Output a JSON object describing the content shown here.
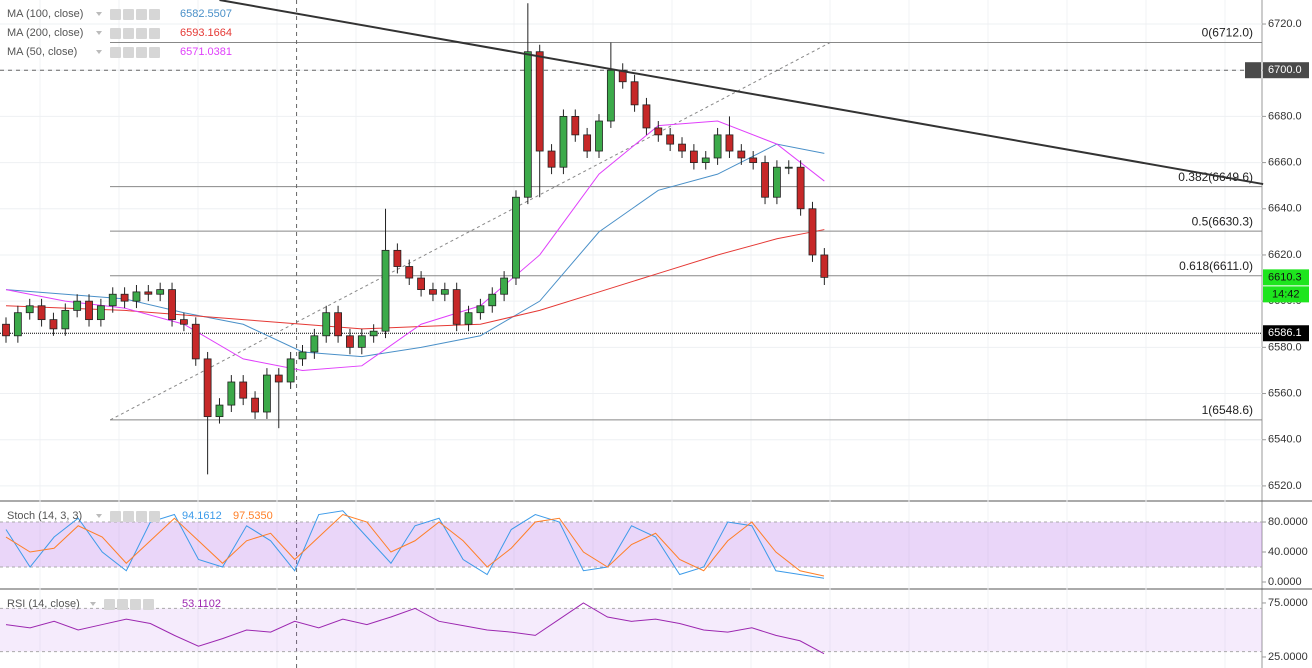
{
  "chart_data": [
    {
      "type": "candlestick",
      "up_color": "#3caa4a",
      "down_color": "#c62828",
      "open": [
        6590,
        6585,
        6595,
        6598,
        6592,
        6588,
        6596,
        6600,
        6592,
        6598,
        6603,
        6600,
        6604,
        6603,
        6605,
        6592,
        6590,
        6575,
        6550,
        6555,
        6565,
        6558,
        6552,
        6568,
        6565,
        6575,
        6578,
        6585,
        6595,
        6585,
        6580,
        6585,
        6587,
        6622,
        6615,
        6610,
        6605,
        6603,
        6605,
        6590,
        6595,
        6598,
        6603,
        6610,
        6645,
        6708,
        6665,
        6658,
        6680,
        6672,
        6665,
        6678,
        6700,
        6695,
        6685,
        6675,
        6672,
        6668,
        6665,
        6660,
        6662,
        6672,
        6665,
        6662,
        6660,
        6645,
        6658,
        6658,
        6640,
        6620
      ],
      "high": [
        6593,
        6598,
        6601,
        6601,
        6595,
        6599,
        6603,
        6603,
        6601,
        6606,
        6606,
        6607,
        6607,
        6608,
        6608,
        6595,
        6593,
        6578,
        6558,
        6568,
        6568,
        6561,
        6571,
        6571,
        6578,
        6581,
        6588,
        6598,
        6598,
        6588,
        6588,
        6590,
        6640,
        6625,
        6618,
        6613,
        6608,
        6608,
        6608,
        6598,
        6601,
        6606,
        6613,
        6648,
        6729,
        6711,
        6668,
        6683,
        6683,
        6675,
        6681,
        6712,
        6703,
        6698,
        6688,
        6678,
        6675,
        6671,
        6668,
        6665,
        6675,
        6680,
        6668,
        6665,
        6663,
        6661,
        6661,
        6661,
        6643,
        6623
      ],
      "low": [
        6582,
        6582,
        6592,
        6589,
        6585,
        6585,
        6593,
        6589,
        6589,
        6595,
        6597,
        6597,
        6600,
        6600,
        6589,
        6587,
        6572,
        6525,
        6547,
        6552,
        6555,
        6549,
        6549,
        6545,
        6562,
        6572,
        6575,
        6582,
        6582,
        6577,
        6577,
        6582,
        6584,
        6612,
        6607,
        6602,
        6600,
        6600,
        6587,
        6587,
        6592,
        6595,
        6600,
        6607,
        6642,
        6645,
        6655,
        6655,
        6669,
        6662,
        6662,
        6675,
        6692,
        6682,
        6672,
        6669,
        6665,
        6662,
        6657,
        6657,
        6659,
        6662,
        6659,
        6657,
        6642,
        6642,
        6655,
        6637,
        6617,
        6607
      ],
      "close": [
        6585,
        6595,
        6598,
        6592,
        6588,
        6596,
        6600,
        6592,
        6598,
        6603,
        6600,
        6604,
        6603,
        6605,
        6592,
        6590,
        6575,
        6550,
        6555,
        6565,
        6558,
        6552,
        6568,
        6565,
        6575,
        6578,
        6585,
        6595,
        6585,
        6580,
        6585,
        6587,
        6622,
        6615,
        6610,
        6605,
        6603,
        6605,
        6590,
        6595,
        6598,
        6603,
        6610,
        6645,
        6708,
        6665,
        6658,
        6680,
        6672,
        6665,
        6678,
        6700,
        6695,
        6685,
        6675,
        6672,
        6668,
        6665,
        6660,
        6662,
        6672,
        6665,
        6662,
        6660,
        6645,
        6658,
        6658,
        6640,
        6620,
        6610.3
      ],
      "ylim": [
        6513.9,
        6730.4
      ],
      "yticks": [
        {
          "value": 6520,
          "label": "6520.0"
        },
        {
          "value": 6540,
          "label": "6540.0"
        },
        {
          "value": 6560,
          "label": "6560.0"
        },
        {
          "value": 6580,
          "label": "6580.0"
        },
        {
          "value": 6600,
          "label": "6600.0"
        },
        {
          "value": 6620,
          "label": "6620.0"
        },
        {
          "value": 6640,
          "label": "6640.0"
        },
        {
          "value": 6660,
          "label": "6660.0"
        },
        {
          "value": 6680,
          "label": "6680.0"
        },
        {
          "value": 6700,
          "label": "6700.0"
        },
        {
          "value": 6720,
          "label": "6720.0"
        }
      ],
      "grid": true,
      "moving_averages": [
        {
          "name": "MA (100, close)",
          "color": "#4a90c8",
          "legend_value": 6582.5507,
          "x": [
            0,
            5,
            10,
            15,
            20,
            25,
            30,
            35,
            40,
            45,
            50,
            55,
            60,
            65,
            69
          ],
          "values": [
            6605,
            6603,
            6601,
            6595,
            6590,
            6578,
            6576,
            6580,
            6585,
            6600,
            6630,
            6648,
            6655,
            6668,
            6664
          ]
        },
        {
          "name": "MA (200, close)",
          "color": "#e53935",
          "legend_value": 6593.1664,
          "x": [
            0,
            5,
            10,
            15,
            20,
            25,
            30,
            35,
            40,
            45,
            50,
            55,
            60,
            65,
            69
          ],
          "values": [
            6598,
            6597,
            6596,
            6594,
            6592,
            6590,
            6588,
            6589,
            6590,
            6596,
            6604,
            6612,
            6620,
            6627,
            6631
          ]
        },
        {
          "name": "MA (50, close)",
          "color": "#e040fb",
          "legend_value": 6571.0381,
          "x": [
            0,
            5,
            10,
            15,
            20,
            25,
            30,
            35,
            40,
            45,
            50,
            55,
            60,
            65,
            69
          ],
          "values": [
            6605,
            6600,
            6597,
            6590,
            6575,
            6570,
            6572,
            6590,
            6598,
            6620,
            6655,
            6676,
            6678,
            6668,
            6652
          ]
        }
      ],
      "fib_levels": [
        {
          "value": 6712.0,
          "label": "0(6712.0)"
        },
        {
          "value": 6649.6,
          "label": "0.382(6649.6)"
        },
        {
          "value": 6630.3,
          "label": "0.5(6630.3)"
        },
        {
          "value": 6611.0,
          "label": "0.618(6611.0)"
        },
        {
          "value": 6548.6,
          "label": "1(6548.6)"
        }
      ],
      "trendline": {
        "x": [
          18,
          106
        ],
        "y": [
          6730.4,
          6650.7
        ]
      },
      "fib_trend": {
        "x": [
          8.8,
          69.5
        ],
        "y": [
          6548.6,
          6712
        ]
      },
      "crosshair": {
        "x": 24.5,
        "y": {
          "value": 6700,
          "label": "6700.0"
        }
      },
      "horizontal_line": 6586.1,
      "last_price": 6610.3,
      "countdown": "14:42"
    },
    {
      "type": "line",
      "title": "Stoch (14, 3, 3)",
      "ylim": [
        -8,
        106.7
      ],
      "band": [
        20,
        80
      ],
      "yticks": [
        {
          "value": 80,
          "label": "80.0000"
        },
        {
          "value": 40,
          "label": "40.0000"
        },
        {
          "value": 0,
          "label": "0.0000"
        }
      ],
      "series": [
        {
          "color": "#3d9be9",
          "legend_value": 94.1612,
          "values": [
            70,
            20,
            60,
            85,
            40,
            15,
            80,
            90,
            30,
            20,
            75,
            55,
            15,
            90,
            95,
            60,
            25,
            75,
            85,
            30,
            10,
            70,
            90,
            80,
            15,
            20,
            75,
            60,
            10,
            20,
            80,
            75,
            15,
            10,
            5
          ]
        },
        {
          "color": "#ff7f27",
          "legend_value": {
            "value": 97.535,
            "label": "97.5350"
          },
          "values": [
            60,
            40,
            45,
            75,
            60,
            25,
            55,
            85,
            55,
            25,
            55,
            65,
            30,
            60,
            90,
            80,
            40,
            55,
            80,
            55,
            20,
            45,
            80,
            85,
            40,
            20,
            50,
            65,
            30,
            15,
            55,
            80,
            40,
            15,
            8
          ]
        }
      ]
    },
    {
      "type": "line",
      "title": "RSI (14, close)",
      "ylim": [
        14.8,
        87
      ],
      "band": [
        30,
        70
      ],
      "yticks": [
        {
          "value": 75,
          "label": "75.0000"
        },
        {
          "value": 25,
          "label": "25.0000"
        }
      ],
      "series": [
        {
          "color": "#9c27b0",
          "legend_value": 53.1102,
          "values": [
            55,
            52,
            58,
            50,
            55,
            60,
            56,
            45,
            35,
            42,
            50,
            48,
            58,
            52,
            60,
            55,
            62,
            70,
            58,
            54,
            50,
            48,
            45,
            60,
            75,
            62,
            58,
            60,
            56,
            50,
            48,
            52,
            45,
            40,
            28
          ]
        }
      ]
    }
  ]
}
